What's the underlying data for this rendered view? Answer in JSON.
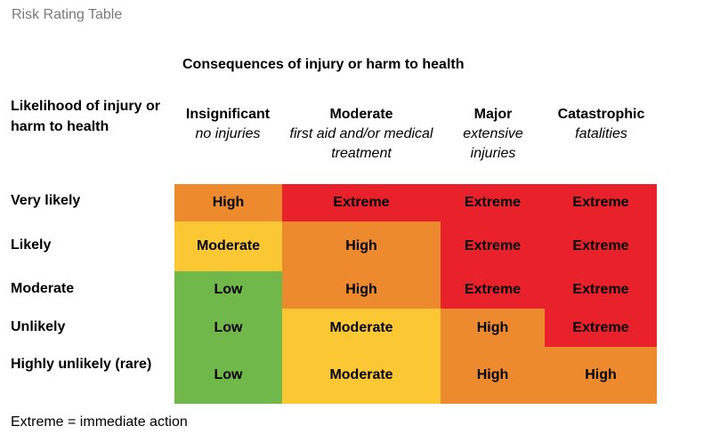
{
  "title": "Risk Rating Table",
  "consequences_heading": "Consequences of injury or harm to health",
  "likelihood_heading": "Likelihood of injury or harm to health",
  "columns": [
    {
      "title": "Insignificant",
      "subtitle": "no injuries"
    },
    {
      "title": "Moderate",
      "subtitle": "first aid and/or medical treatment"
    },
    {
      "title": "Major",
      "subtitle": "extensive injuries"
    },
    {
      "title": "Catastrophic",
      "subtitle": "fatalities"
    }
  ],
  "rows": [
    {
      "label": "Very likely",
      "cells": [
        "High",
        "Extreme",
        "Extreme",
        "Extreme"
      ]
    },
    {
      "label": "Likely",
      "cells": [
        "Moderate",
        "High",
        "Extreme",
        "Extreme"
      ]
    },
    {
      "label": "Moderate",
      "cells": [
        "Low",
        "High",
        "Extreme",
        "Extreme"
      ]
    },
    {
      "label": "Unlikely",
      "cells": [
        "Low",
        "Moderate",
        "High",
        "Extreme"
      ]
    },
    {
      "label": "Highly unlikely (rare)",
      "cells": [
        "Low",
        "Moderate",
        "High",
        "High"
      ]
    }
  ],
  "rating_colors": {
    "Extreme": "#e8212a",
    "High": "#ed8a2e",
    "Moderate": "#fbc733",
    "Low": "#71b84b"
  },
  "footnote": "Extreme = immediate action"
}
